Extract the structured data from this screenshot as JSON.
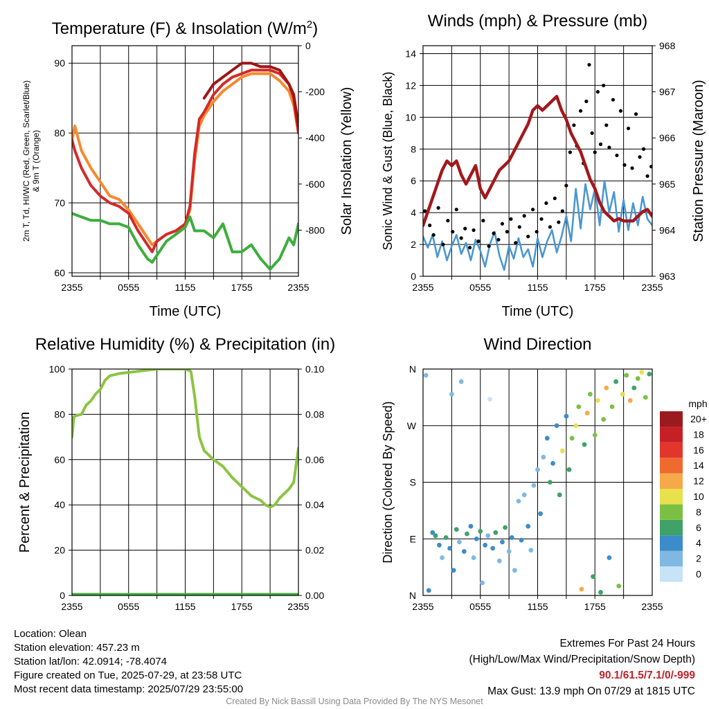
{
  "colors": {
    "air_temp": "#d42a2a",
    "heat_index": "#a01616",
    "temp_9m": "#f7892e",
    "dewpoint": "#3cae3c",
    "wind": "#4a97d3",
    "gust": "#000000",
    "pressure": "#a3181d",
    "rh": "#8cc442",
    "precip": "#3cae3c"
  },
  "chart_data": [
    {
      "id": "temperature",
      "type": "line",
      "title": "Temperature (F) & Insolation (W/m²)",
      "xlabel": "Time (UTC)",
      "ylabel": "2m T, Td, HI/WC (Red, Green, Scarlet/Blue) & 9m T (Orange)",
      "ylabel_line1": "2m T, Td, HI/WC (Red, Green, Scarlet/Blue)",
      "ylabel_line2": "& 9m T (Orange)",
      "y2label": "Solar Insolation (Yellow)",
      "x_ticks": [
        "2355",
        "0555",
        "1155",
        "1755",
        "2355"
      ],
      "x_range_hours": [
        0,
        24
      ],
      "ylim": [
        59.5,
        92.5
      ],
      "y_ticks": [
        60,
        70,
        80,
        90
      ],
      "y2lim": [
        -1000,
        0
      ],
      "y2_ticks": [
        0,
        -200,
        -400,
        -600,
        -800
      ],
      "grid": true,
      "series": [
        {
          "key": "temp_9m",
          "x": [
            0,
            0.3,
            1,
            2,
            3,
            4,
            5,
            6,
            7,
            8,
            8.5,
            9,
            10,
            11,
            12,
            12.5,
            13,
            13.5,
            14,
            15,
            16,
            17,
            18,
            19,
            20,
            21,
            22,
            23,
            23.5,
            24
          ],
          "y": [
            79,
            81,
            77.5,
            75,
            73,
            71,
            70.5,
            69,
            67,
            65,
            64,
            64.5,
            65.5,
            66,
            67,
            69,
            76,
            81,
            82.5,
            84.5,
            86,
            87,
            88,
            88.5,
            88.5,
            88.5,
            87.5,
            86,
            84,
            80
          ]
        },
        {
          "key": "air_temp",
          "x": [
            0,
            0.3,
            1,
            2,
            3,
            4,
            5,
            6,
            7,
            8,
            8.5,
            9,
            10,
            11,
            12,
            12.5,
            13,
            13.5,
            14,
            15,
            16,
            17,
            18,
            19,
            20,
            21,
            22,
            23,
            23.5,
            24
          ],
          "y": [
            79,
            77.5,
            75,
            72.5,
            71,
            70,
            69.5,
            68.5,
            66,
            64,
            63,
            64.5,
            65.5,
            66,
            67,
            69.5,
            77,
            82,
            83,
            85.5,
            87,
            88,
            88.5,
            89,
            89,
            89,
            88.5,
            87,
            85,
            80
          ]
        },
        {
          "key": "heat_index",
          "x": [
            14,
            15,
            16,
            17,
            18,
            19,
            20,
            21,
            22,
            23,
            23.5,
            24
          ],
          "y": [
            85,
            87,
            88,
            89,
            90,
            90,
            89.5,
            89.5,
            89,
            87,
            85.5,
            81
          ]
        },
        {
          "key": "dewpoint",
          "x": [
            0,
            1,
            2,
            3,
            4,
            5,
            6,
            7,
            8,
            8.5,
            9,
            10,
            11,
            12,
            12.5,
            13,
            14,
            15,
            16,
            17,
            18,
            19,
            20,
            21,
            22,
            23,
            23.5,
            24
          ],
          "y": [
            68.5,
            68,
            67.5,
            67.5,
            67,
            67,
            66.5,
            64,
            62,
            61.5,
            62.5,
            64.5,
            65.5,
            66.5,
            68,
            66,
            66,
            65,
            67,
            63,
            63,
            64,
            62,
            60.5,
            62,
            65,
            64,
            67
          ]
        }
      ]
    },
    {
      "id": "winds",
      "type": "line",
      "title": "Winds (mph) & Pressure (mb)",
      "xlabel": "Time (UTC)",
      "ylabel": "Sonic Wind & Gust (Blue, Black)",
      "y2label": "Station Pressure (Maroon)",
      "x_ticks": [
        "2355",
        "0555",
        "1155",
        "1755",
        "2355"
      ],
      "x_range_hours": [
        0,
        24
      ],
      "ylim": [
        0,
        14.5
      ],
      "y_ticks": [
        0,
        2,
        4,
        6,
        8,
        10,
        12,
        14
      ],
      "y2lim": [
        963,
        968
      ],
      "y2_ticks": [
        963,
        964,
        965,
        966,
        967,
        968
      ],
      "grid": true,
      "series": [
        {
          "key": "wind",
          "x": [
            0,
            0.5,
            1,
            1.5,
            2,
            2.5,
            3,
            3.5,
            4,
            4.5,
            5,
            5.5,
            6,
            6.5,
            7,
            7.5,
            8,
            8.5,
            9,
            9.5,
            10,
            10.5,
            11,
            11.5,
            12,
            12.5,
            13,
            13.5,
            14,
            14.5,
            15,
            15.5,
            16,
            16.5,
            17,
            17.5,
            18,
            18.5,
            19,
            19.5,
            20,
            20.5,
            21,
            21.5,
            22,
            22.5,
            23,
            23.5,
            24
          ],
          "y": [
            2.5,
            1.8,
            2.6,
            1.2,
            2.2,
            1.0,
            1.9,
            2.6,
            1.4,
            2.1,
            1.0,
            2.3,
            1.6,
            0.6,
            2.0,
            2.8,
            1.3,
            0.4,
            1.9,
            1.1,
            2.4,
            1.2,
            1.7,
            0.6,
            2.4,
            1.2,
            2.2,
            2.9,
            1.5,
            2.5,
            3.8,
            2.2,
            5.5,
            3.0,
            5.8,
            4.2,
            5.5,
            3.2,
            6.0,
            4.0,
            5.3,
            2.8,
            4.8,
            2.9,
            4.6,
            3.2,
            5.0,
            3.6,
            3.2
          ]
        },
        {
          "key": "gust",
          "mode": "markers",
          "x": [
            0.2,
            0.7,
            1.1,
            1.6,
            2.1,
            2.6,
            3.1,
            3.5,
            4.0,
            4.4,
            4.9,
            5.3,
            5.8,
            6.3,
            6.9,
            7.4,
            7.9,
            8.3,
            8.8,
            9.2,
            9.7,
            10.1,
            10.6,
            11.0,
            11.5,
            11.9,
            12.4,
            12.9,
            13.3,
            13.8,
            14.2,
            14.6,
            15.0,
            15.4,
            15.8,
            16.1,
            16.5,
            16.8,
            17.1,
            17.4,
            17.7,
            18.0,
            18.3,
            18.6,
            18.9,
            19.2,
            19.5,
            19.9,
            20.3,
            20.7,
            21.1,
            21.5,
            21.9,
            22.3,
            22.7,
            23.1,
            23.5,
            23.9
          ],
          "y": [
            4.1,
            3.2,
            2.6,
            4.3,
            2.0,
            3.5,
            2.8,
            4.2,
            2.4,
            3.0,
            1.8,
            2.9,
            2.2,
            3.5,
            1.9,
            2.7,
            2.3,
            3.3,
            2.8,
            3.6,
            2.1,
            3.1,
            3.8,
            2.5,
            4.2,
            2.8,
            3.6,
            4.6,
            3.1,
            4.9,
            3.4,
            4.1,
            5.7,
            7.8,
            9.5,
            8.2,
            10.4,
            7.1,
            11.0,
            13.3,
            9.0,
            7.8,
            11.6,
            8.3,
            12.0,
            9.5,
            8.1,
            11.1,
            7.6,
            10.4,
            7.0,
            9.3,
            6.8,
            10.2,
            7.5,
            8.0,
            6.3,
            6.9
          ]
        },
        {
          "key": "pressure",
          "axis": "y2",
          "x": [
            0,
            0.5,
            1,
            1.5,
            2,
            2.5,
            3,
            3.5,
            4,
            4.5,
            5,
            5.5,
            6,
            6.5,
            7,
            7.5,
            8,
            8.5,
            9,
            9.5,
            10,
            10.5,
            11,
            11.5,
            12,
            12.5,
            13,
            13.5,
            14,
            14.5,
            15,
            15.5,
            16,
            16.5,
            17,
            17.5,
            18,
            18.5,
            19,
            19.5,
            20,
            20.5,
            21,
            21.5,
            22,
            22.5,
            23,
            23.5,
            24
          ],
          "y": [
            964.1,
            964.4,
            964.7,
            965.0,
            965.3,
            965.5,
            965.4,
            965.5,
            965.2,
            965.0,
            965.2,
            965.4,
            964.9,
            964.7,
            964.9,
            965.1,
            965.3,
            965.4,
            965.5,
            965.7,
            965.9,
            966.1,
            966.3,
            966.6,
            966.7,
            966.6,
            966.7,
            966.8,
            966.9,
            966.6,
            966.4,
            966.1,
            965.9,
            965.7,
            965.4,
            965.1,
            964.9,
            964.6,
            964.4,
            964.3,
            964.2,
            964.25,
            964.2,
            964.2,
            964.2,
            964.3,
            964.4,
            964.45,
            964.3
          ]
        }
      ]
    },
    {
      "id": "humidity",
      "type": "line",
      "title": "Relative Humidity (%) & Precipitation (in)",
      "xlabel": "",
      "ylabel": "Percent & Precipitation",
      "x_ticks": [
        "2355",
        "0555",
        "1155",
        "1755",
        "2355"
      ],
      "x_range_hours": [
        0,
        24
      ],
      "ylim": [
        0,
        100
      ],
      "y_ticks": [
        0,
        20,
        40,
        60,
        80,
        100
      ],
      "y2lim": [
        0,
        0.1
      ],
      "y2_ticks": [
        "0.00",
        "0.02",
        "0.04",
        "0.06",
        "0.08",
        "0.10"
      ],
      "grid": true,
      "series": [
        {
          "key": "rh",
          "x": [
            0,
            0.2,
            0.5,
            1,
            1.5,
            2,
            2.5,
            3,
            3.5,
            4,
            4.5,
            5,
            6,
            7,
            8,
            9,
            10,
            11,
            12,
            12.6,
            13,
            13.5,
            14,
            15,
            16,
            17,
            18,
            19,
            20,
            20.5,
            21,
            21.5,
            22,
            23,
            23.5,
            24
          ],
          "y": [
            70,
            79,
            79.5,
            80,
            84,
            86,
            89,
            91,
            95,
            97,
            97.5,
            98,
            98.5,
            99,
            99.5,
            100,
            100,
            100,
            100,
            99,
            88,
            70,
            64,
            60,
            57,
            52,
            48,
            44,
            42,
            40,
            39,
            40,
            43,
            47,
            50,
            65
          ]
        },
        {
          "key": "precip",
          "x": [
            0,
            24
          ],
          "y": [
            0,
            0
          ]
        }
      ]
    },
    {
      "id": "direction",
      "type": "scatter",
      "title": "Wind Direction",
      "ylabel": "Direction (Colored By Speed)",
      "x_ticks": [
        "2355",
        "0555",
        "1155",
        "1755",
        "2355"
      ],
      "x_range_hours": [
        0,
        24
      ],
      "ylim": [
        0,
        360
      ],
      "y_ticks": [
        "N",
        "E",
        "S",
        "W",
        "N"
      ],
      "grid": true,
      "legend_title": "mph",
      "legend_labels": [
        "0",
        "2",
        "4",
        "6",
        "8",
        "10",
        "12",
        "14",
        "16",
        "18",
        "20+"
      ],
      "legend_colors": [
        "#c6e3f7",
        "#7fb9e3",
        "#3c8cc9",
        "#3fa268",
        "#7cc043",
        "#e8e04c",
        "#f7a94a",
        "#ef6a2e",
        "#e2352c",
        "#c61f26",
        "#9b1a1e"
      ],
      "legend_placement": "right",
      "points": [
        [
          0.3,
          350,
          1
        ],
        [
          0.6,
          8,
          2
        ],
        [
          1.0,
          100,
          2
        ],
        [
          1.3,
          95,
          3
        ],
        [
          1.7,
          80,
          2
        ],
        [
          2.0,
          60,
          1
        ],
        [
          2.4,
          92,
          3
        ],
        [
          2.8,
          75,
          2
        ],
        [
          3.0,
          320,
          1
        ],
        [
          3.2,
          40,
          2
        ],
        [
          3.5,
          105,
          3
        ],
        [
          3.8,
          85,
          1
        ],
        [
          4.0,
          340,
          1
        ],
        [
          4.3,
          70,
          2
        ],
        [
          4.6,
          98,
          3
        ],
        [
          5.0,
          110,
          2
        ],
        [
          5.3,
          60,
          1
        ],
        [
          5.6,
          90,
          2
        ],
        [
          6.0,
          102,
          3
        ],
        [
          6.2,
          20,
          1
        ],
        [
          6.5,
          80,
          2
        ],
        [
          6.8,
          95,
          1
        ],
        [
          7.0,
          312,
          0
        ],
        [
          7.3,
          75,
          2
        ],
        [
          7.6,
          100,
          3
        ],
        [
          8.0,
          55,
          1
        ],
        [
          8.3,
          85,
          2
        ],
        [
          8.6,
          108,
          3
        ],
        [
          9.0,
          70,
          1
        ],
        [
          9.3,
          92,
          2
        ],
        [
          9.6,
          40,
          1
        ],
        [
          10.0,
          150,
          1
        ],
        [
          10.3,
          88,
          2
        ],
        [
          10.6,
          160,
          1
        ],
        [
          11.0,
          110,
          2
        ],
        [
          11.3,
          72,
          1
        ],
        [
          11.6,
          175,
          1
        ],
        [
          12.0,
          200,
          1
        ],
        [
          12.3,
          130,
          2
        ],
        [
          12.6,
          220,
          1
        ],
        [
          13.0,
          250,
          2
        ],
        [
          13.3,
          180,
          3
        ],
        [
          13.6,
          210,
          2
        ],
        [
          14.0,
          270,
          2
        ],
        [
          14.3,
          160,
          3
        ],
        [
          14.6,
          230,
          5
        ],
        [
          15.0,
          285,
          2
        ],
        [
          15.3,
          200,
          3
        ],
        [
          15.6,
          250,
          4
        ],
        [
          16.0,
          270,
          5
        ],
        [
          16.3,
          300,
          4
        ],
        [
          16.6,
          10,
          6
        ],
        [
          16.9,
          240,
          3
        ],
        [
          17.2,
          290,
          6
        ],
        [
          17.5,
          320,
          4
        ],
        [
          17.8,
          30,
          3
        ],
        [
          18.0,
          255,
          4
        ],
        [
          18.3,
          310,
          5
        ],
        [
          18.6,
          5,
          3
        ],
        [
          18.9,
          280,
          4
        ],
        [
          19.2,
          330,
          6
        ],
        [
          19.5,
          60,
          2
        ],
        [
          19.8,
          300,
          4
        ],
        [
          20.2,
          340,
          3
        ],
        [
          20.5,
          15,
          4
        ],
        [
          20.9,
          320,
          5
        ],
        [
          21.3,
          350,
          4
        ],
        [
          21.7,
          310,
          6
        ],
        [
          22.1,
          330,
          3
        ],
        [
          22.5,
          345,
          4
        ],
        [
          22.9,
          355,
          5
        ],
        [
          23.3,
          315,
          4
        ],
        [
          23.7,
          352,
          3
        ]
      ]
    }
  ],
  "info": {
    "location": "Location: Olean",
    "elevation": "Station elevation: 457.23 m",
    "latlon": "Station lat/lon: 42.0914; -78.4074",
    "created": "Figure created on Tue, 2025-07-29, at 23:58 UTC",
    "recent": "Most recent data timestamp: 2025/07/29 23:55:00"
  },
  "extremes": {
    "title": "Extremes For Past 24 Hours",
    "subtitle": "(High/Low/Max Wind/Precipitation/Snow Depth)",
    "values": "90.1/61.5/7.1/0/-999",
    "gust": "Max Gust: 13.9 mph On 07/29 at 1815 UTC"
  },
  "credit": "Created By Nick Bassill Using Data Provided By The NYS Mesonet"
}
